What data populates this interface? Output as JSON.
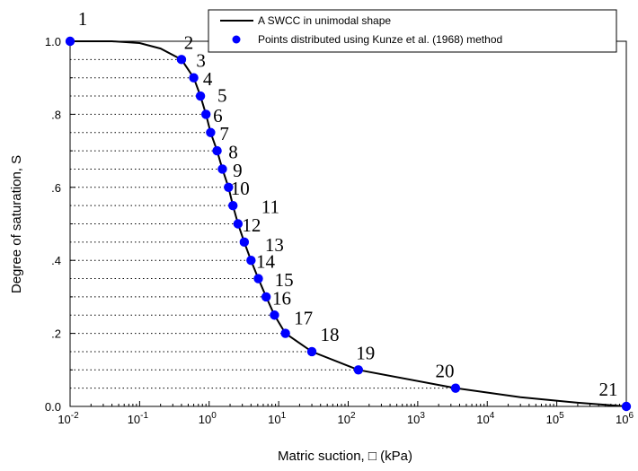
{
  "chart_data": {
    "type": "line",
    "xlabel": "Matric suction, □ (kPa)",
    "ylabel": "Degree of saturation, S",
    "x_scale": "log",
    "xlim": [
      0.01,
      1000000
    ],
    "ylim": [
      0,
      1
    ],
    "x_ticks": [
      {
        "base": "10",
        "exp": "-2"
      },
      {
        "base": "10",
        "exp": "-1"
      },
      {
        "base": "10",
        "exp": "0"
      },
      {
        "base": "10",
        "exp": "1"
      },
      {
        "base": "10",
        "exp": "2"
      },
      {
        "base": "10",
        "exp": "3"
      },
      {
        "base": "10",
        "exp": "4"
      },
      {
        "base": "10",
        "exp": "5"
      },
      {
        "base": "10",
        "exp": "6"
      }
    ],
    "y_ticks": [
      {
        "value": 0,
        "label": "0.0"
      },
      {
        "value": 0.2,
        "label": ".2"
      },
      {
        "value": 0.4,
        "label": ".4"
      },
      {
        "value": 0.6,
        "label": ".6"
      },
      {
        "value": 0.8,
        "label": ".8"
      },
      {
        "value": 1.0,
        "label": "1.0"
      }
    ],
    "legend": {
      "position": "top-right",
      "entries": [
        {
          "label": "A SWCC in unimodal shape",
          "marker": "line",
          "color": "#000000"
        },
        {
          "label": "Points distributed using Kunze et al. (1968) method",
          "marker": "circle",
          "color": "#0000ff"
        }
      ]
    },
    "series": [
      {
        "name": "A SWCC in unimodal shape",
        "kind": "line",
        "color": "#000000",
        "points": [
          [
            0.01,
            1.0
          ],
          [
            0.04,
            1.0
          ],
          [
            0.1,
            0.995
          ],
          [
            0.2,
            0.98
          ],
          [
            0.4,
            0.95
          ],
          [
            0.6,
            0.9
          ],
          [
            0.75,
            0.85
          ],
          [
            0.9,
            0.8
          ],
          [
            1.05,
            0.75
          ],
          [
            1.3,
            0.7
          ],
          [
            1.55,
            0.65
          ],
          [
            1.9,
            0.6
          ],
          [
            2.2,
            0.55
          ],
          [
            2.6,
            0.5
          ],
          [
            3.2,
            0.45
          ],
          [
            4.0,
            0.4
          ],
          [
            5.1,
            0.35
          ],
          [
            6.6,
            0.3
          ],
          [
            8.7,
            0.25
          ],
          [
            12.5,
            0.2
          ],
          [
            30,
            0.15
          ],
          [
            140,
            0.1
          ],
          [
            3500,
            0.05
          ],
          [
            30000,
            0.025
          ],
          [
            200000,
            0.01
          ],
          [
            1000000,
            0.0
          ]
        ]
      },
      {
        "name": "Points distributed using Kunze et al. (1968) method",
        "kind": "scatter",
        "color": "#0000ff",
        "points": [
          {
            "label": "1",
            "x": 0.01,
            "y": 1.0
          },
          {
            "label": "2",
            "x": 0.4,
            "y": 0.95
          },
          {
            "label": "3",
            "x": 0.6,
            "y": 0.9
          },
          {
            "label": "4",
            "x": 0.75,
            "y": 0.85
          },
          {
            "label": "5",
            "x": 0.9,
            "y": 0.8
          },
          {
            "label": "6",
            "x": 1.05,
            "y": 0.75
          },
          {
            "label": "7",
            "x": 1.3,
            "y": 0.7
          },
          {
            "label": "8",
            "x": 1.55,
            "y": 0.65
          },
          {
            "label": "9",
            "x": 1.9,
            "y": 0.6
          },
          {
            "label": "10",
            "x": 2.2,
            "y": 0.55
          },
          {
            "label": "11",
            "x": 2.6,
            "y": 0.5
          },
          {
            "label": "12",
            "x": 3.2,
            "y": 0.45
          },
          {
            "label": "13",
            "x": 4.0,
            "y": 0.4
          },
          {
            "label": "14",
            "x": 5.1,
            "y": 0.35
          },
          {
            "label": "15",
            "x": 6.6,
            "y": 0.3
          },
          {
            "label": "16",
            "x": 8.7,
            "y": 0.25
          },
          {
            "label": "17",
            "x": 12.5,
            "y": 0.2
          },
          {
            "label": "18",
            "x": 30,
            "y": 0.15
          },
          {
            "label": "19",
            "x": 140,
            "y": 0.1
          },
          {
            "label": "20",
            "x": 3500,
            "y": 0.05
          },
          {
            "label": "21",
            "x": 1000000,
            "y": 0.0
          }
        ]
      }
    ],
    "guide_lines": "dotted horizontal lines from y-axis to each point"
  }
}
